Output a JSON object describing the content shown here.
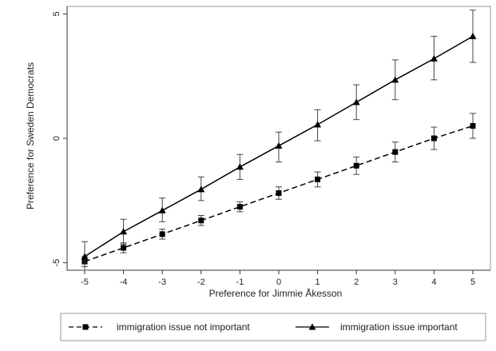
{
  "chart_data": {
    "type": "line",
    "title": "",
    "xlabel": "Preference for Jimmie Åkesson",
    "ylabel": "Preference for Sweden Democrats",
    "x": [
      -5,
      -4,
      -3,
      -2,
      -1,
      0,
      1,
      2,
      3,
      4,
      5
    ],
    "xlim": [
      -5,
      5
    ],
    "ylim": [
      -5.3,
      5.3
    ],
    "xticks": [
      "-5",
      "-4",
      "-3",
      "-2",
      "-1",
      "0",
      "1",
      "2",
      "3",
      "4",
      "5"
    ],
    "yticks": [
      "-5",
      "0",
      "5"
    ],
    "grid": false,
    "legend_position": "bottom",
    "series": [
      {
        "name": "immigration issue not important",
        "values": [
          -4.95,
          -4.4,
          -3.85,
          -3.3,
          -2.75,
          -2.2,
          -1.65,
          -1.1,
          -0.55,
          0.0,
          0.5
        ],
        "ci_low": [
          -5.15,
          -4.6,
          -4.05,
          -3.5,
          -2.95,
          -2.45,
          -1.95,
          -1.45,
          -0.95,
          -0.45,
          0.0
        ],
        "ci_high": [
          -4.75,
          -4.2,
          -3.65,
          -3.1,
          -2.55,
          -1.95,
          -1.35,
          -0.75,
          -0.15,
          0.45,
          1.0
        ],
        "line_style": "dashed",
        "marker": "square",
        "color": "#000000"
      },
      {
        "name": "immigration issue important",
        "values": [
          -4.75,
          -3.75,
          -2.9,
          -2.05,
          -1.15,
          -0.3,
          0.55,
          1.45,
          2.35,
          3.2,
          4.1
        ],
        "ci_low": [
          -5.3,
          -4.25,
          -3.35,
          -2.5,
          -1.65,
          -0.95,
          -0.1,
          0.75,
          1.55,
          2.35,
          3.05
        ],
        "ci_high": [
          -4.15,
          -3.25,
          -2.4,
          -1.55,
          -0.65,
          0.25,
          1.15,
          2.15,
          3.15,
          4.1,
          5.15
        ],
        "line_style": "solid",
        "marker": "triangle",
        "color": "#000000"
      }
    ]
  }
}
